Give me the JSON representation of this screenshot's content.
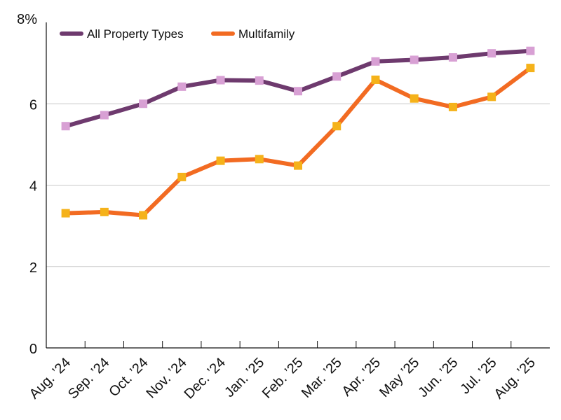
{
  "chart_data": {
    "type": "line",
    "title": "",
    "xlabel": "",
    "ylabel": "",
    "categories": [
      "Aug. ’24",
      "Sep. ’24",
      "Oct. ’24",
      "Nov. ’24",
      "Dec. ’24",
      "Jan. ’25",
      "Feb. ’25",
      "Mar. ’25",
      "Apr. ’25",
      "May ’25",
      "Jun. ’25",
      "Jul. ’25",
      "Aug. ’25"
    ],
    "y_ticks": [
      "0",
      "2",
      "4",
      "6",
      "8%"
    ],
    "ylim": [
      0,
      8
    ],
    "grid": "horizontal",
    "legend_position": "top-left",
    "series": [
      {
        "name": "All Property Types",
        "line_color": "#6e3a6e",
        "marker_color": "#d8a0d4",
        "values": [
          5.45,
          5.72,
          6.0,
          6.42,
          6.58,
          6.57,
          6.31,
          6.67,
          7.04,
          7.08,
          7.14,
          7.24,
          7.3
        ]
      },
      {
        "name": "Multifamily",
        "line_color": "#f26b22",
        "marker_color": "#f5b21a",
        "values": [
          3.31,
          3.34,
          3.26,
          4.2,
          4.6,
          4.64,
          4.48,
          5.45,
          6.59,
          6.13,
          5.92,
          6.17,
          6.88
        ]
      }
    ]
  }
}
